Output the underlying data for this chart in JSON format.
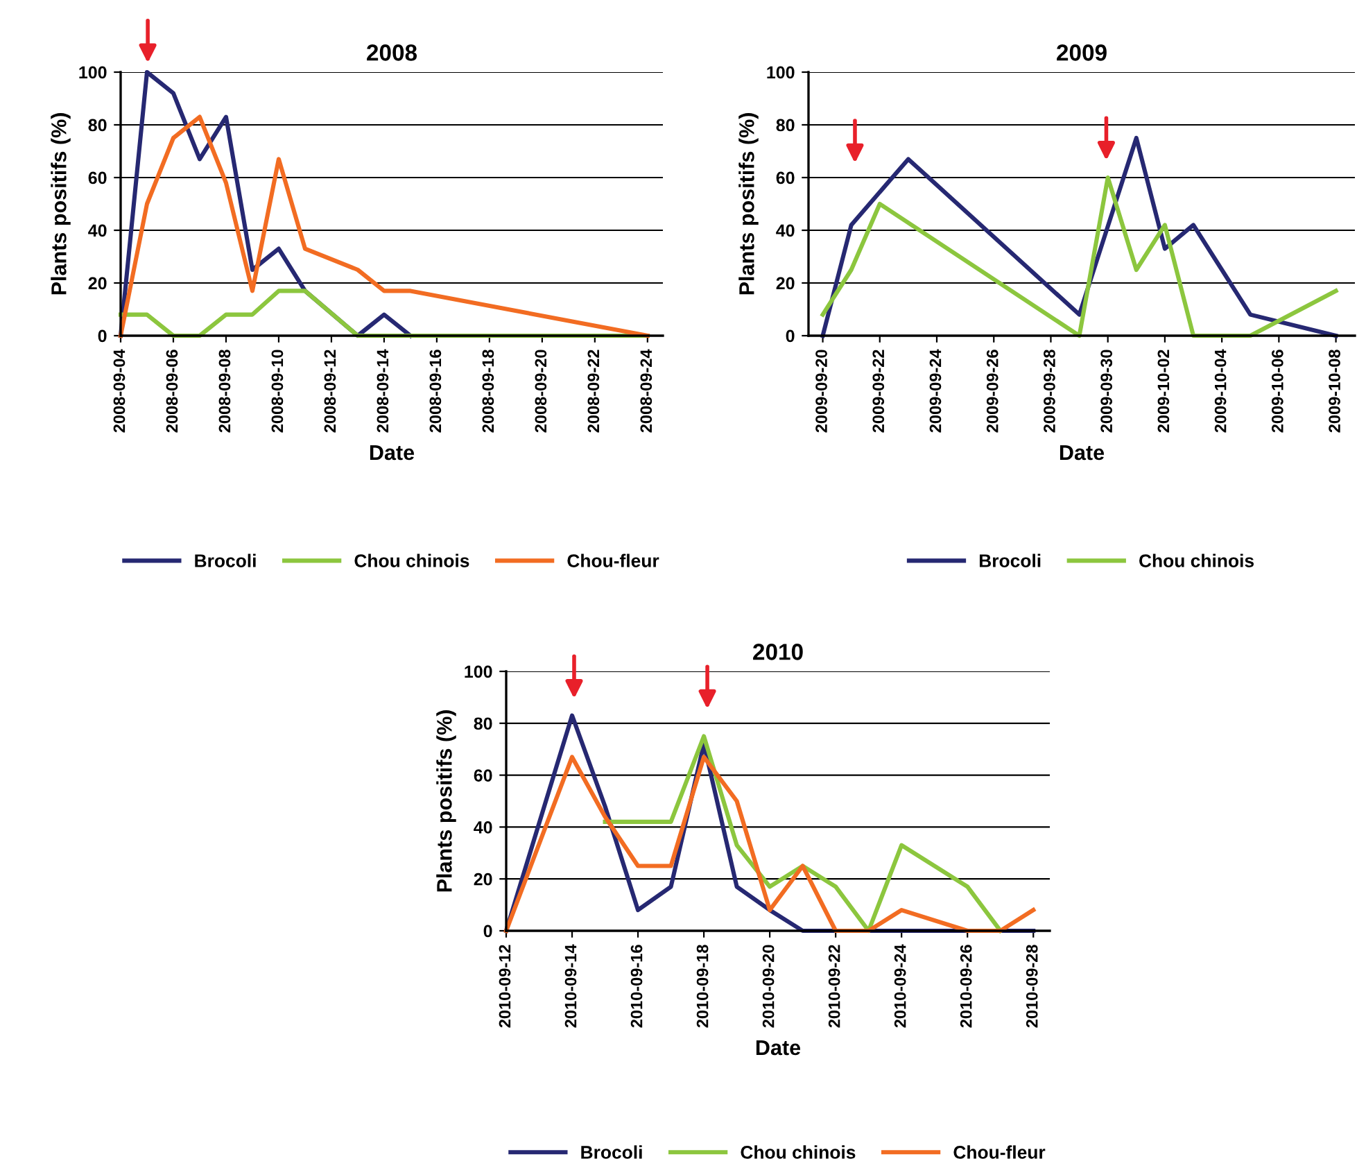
{
  "chart_data": [
    {
      "type": "line",
      "title": "2008",
      "xlabel": "Date",
      "ylabel": "Plants positifs (%)",
      "ylim": [
        0,
        100
      ],
      "yticks": [
        0,
        20,
        40,
        60,
        80,
        100
      ],
      "xlim": [
        "2008-09-04",
        "2008-09-24T14:00"
      ],
      "xticks": [
        "2008-09-04",
        "2008-09-06",
        "2008-09-08",
        "2008-09-10",
        "2008-09-12",
        "2008-09-14",
        "2008-09-16",
        "2008-09-18",
        "2008-09-20",
        "2008-09-22",
        "2008-09-24"
      ],
      "grid": "y",
      "legend": "bottom",
      "marker": "none",
      "line_style": "solid",
      "series": [
        {
          "name": "Brocoli",
          "color": "#262872",
          "x": [
            "2008-09-04",
            "2008-09-05",
            "2008-09-06",
            "2008-09-07",
            "2008-09-08",
            "2008-09-09",
            "2008-09-10",
            "2008-09-11",
            "2008-09-13",
            "2008-09-14",
            "2008-09-15"
          ],
          "values": [
            0,
            100,
            92,
            67,
            83,
            25,
            33,
            17,
            0,
            8,
            0
          ]
        },
        {
          "name": "Chou chinois",
          "color": "#8cc63e",
          "x": [
            "2008-09-04",
            "2008-09-05",
            "2008-09-06",
            "2008-09-07",
            "2008-09-08",
            "2008-09-09",
            "2008-09-10",
            "2008-09-11",
            "2008-09-13",
            "2008-09-14",
            "2008-09-15",
            "2008-09-24"
          ],
          "values": [
            8,
            8,
            0,
            0,
            8,
            8,
            17,
            17,
            0,
            0,
            0,
            0
          ]
        },
        {
          "name": "Chou-fleur",
          "color": "#f26c22",
          "x": [
            "2008-09-04",
            "2008-09-05",
            "2008-09-06",
            "2008-09-07",
            "2008-09-08",
            "2008-09-09",
            "2008-09-10",
            "2008-09-11",
            "2008-09-13",
            "2008-09-14",
            "2008-09-15",
            "2008-09-24"
          ],
          "values": [
            0,
            50,
            75,
            83,
            58,
            17,
            67,
            33,
            25,
            17,
            17,
            0
          ]
        }
      ]
    },
    {
      "type": "line",
      "title": "2009",
      "xlabel": "Date",
      "ylabel": "Plants positifs (%)",
      "ylim": [
        0,
        100
      ],
      "yticks": [
        0,
        20,
        40,
        60,
        80,
        100
      ],
      "xlim": [
        "2009-09-19T12:00",
        "2009-10-08T16:00"
      ],
      "xticks": [
        "2009-09-20",
        "2009-09-22",
        "2009-09-24",
        "2009-09-26",
        "2009-09-28",
        "2009-09-30",
        "2009-10-02",
        "2009-10-04",
        "2009-10-06",
        "2009-10-08"
      ],
      "grid": "y",
      "legend": "bottom",
      "marker": "none",
      "line_style": "solid",
      "series": [
        {
          "name": "Brocoli",
          "color": "#262872",
          "x": [
            "2009-09-20",
            "2009-09-21",
            "2009-09-23",
            "2009-09-29",
            "2009-10-01",
            "2009-10-02",
            "2009-10-03",
            "2009-10-05",
            "2009-10-08"
          ],
          "values": [
            0,
            42,
            67,
            8,
            75,
            33,
            42,
            8,
            0
          ]
        },
        {
          "name": "Chou chinois",
          "color": "#8cc63e",
          "x": [
            "2009-09-20",
            "2009-09-21",
            "2009-09-22",
            "2009-09-29",
            "2009-09-30",
            "2009-10-01",
            "2009-10-02",
            "2009-10-03",
            "2009-10-05",
            "2009-10-08"
          ],
          "values": [
            8,
            25,
            50,
            0,
            60,
            25,
            42,
            0,
            0,
            17
          ]
        }
      ]
    },
    {
      "type": "line",
      "title": "2010",
      "xlabel": "Date",
      "ylabel": "Plants positifs (%)",
      "ylim": [
        0,
        100
      ],
      "yticks": [
        0,
        20,
        40,
        60,
        80,
        100
      ],
      "xlim": [
        "2010-09-12",
        "2010-09-28T12:00"
      ],
      "xticks": [
        "2010-09-12",
        "2010-09-14",
        "2010-09-16",
        "2010-09-18",
        "2010-09-20",
        "2010-09-22",
        "2010-09-24",
        "2010-09-26",
        "2010-09-28"
      ],
      "grid": "y",
      "legend": "bottom",
      "marker": "none",
      "line_style": "solid",
      "series": [
        {
          "name": "Brocoli",
          "color": "#262872",
          "x": [
            "2010-09-12",
            "2010-09-14",
            "2010-09-15",
            "2010-09-16",
            "2010-09-17",
            "2010-09-18",
            "2010-09-19",
            "2010-09-20",
            "2010-09-21",
            "2010-09-28"
          ],
          "values": [
            0,
            83,
            48,
            8,
            17,
            72,
            17,
            8,
            0,
            0
          ]
        },
        {
          "name": "Chou chinois",
          "color": "#8cc63e",
          "x": [
            "2010-09-15",
            "2010-09-16",
            "2010-09-17",
            "2010-09-18",
            "2010-09-19",
            "2010-09-20",
            "2010-09-21",
            "2010-09-22",
            "2010-09-23",
            "2010-09-24",
            "2010-09-26",
            "2010-09-27"
          ],
          "values": [
            42,
            42,
            42,
            75,
            33,
            17,
            25,
            17,
            0,
            33,
            17,
            0
          ]
        },
        {
          "name": "Chou-fleur",
          "color": "#f26c22",
          "x": [
            "2010-09-12",
            "2010-09-14",
            "2010-09-15",
            "2010-09-16",
            "2010-09-17",
            "2010-09-18",
            "2010-09-19",
            "2010-09-20",
            "2010-09-21",
            "2010-09-22",
            "2010-09-23",
            "2010-09-24",
            "2010-09-26",
            "2010-09-27",
            "2010-09-28"
          ],
          "values": [
            0,
            67,
            44,
            25,
            25,
            67,
            50,
            8,
            25,
            0,
            0,
            8,
            0,
            0,
            8
          ]
        }
      ]
    }
  ]
}
